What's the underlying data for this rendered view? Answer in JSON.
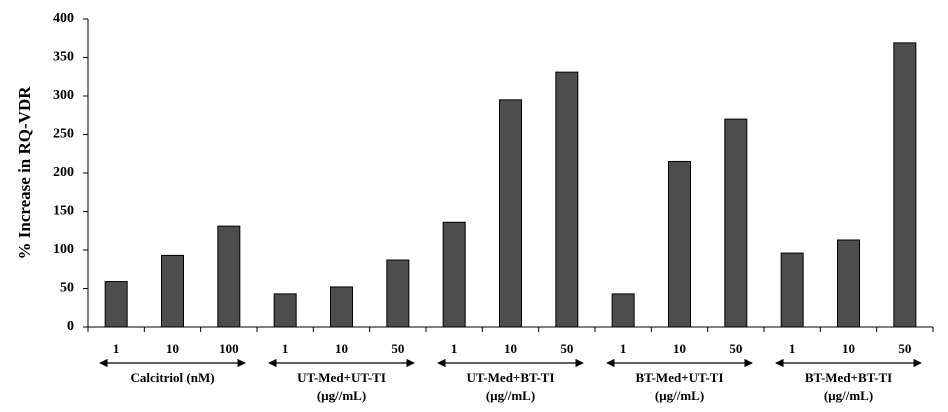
{
  "chart_data": {
    "type": "bar",
    "y_label": "% Increase in RQ-VDR",
    "categories": [
      "1",
      "10",
      "100",
      "1",
      "10",
      "50",
      "1",
      "10",
      "50",
      "1",
      "10",
      "50",
      "1",
      "10",
      "50"
    ],
    "values": [
      59,
      93,
      131,
      43,
      52,
      87,
      136,
      295,
      331,
      43,
      215,
      270,
      96,
      113,
      369
    ],
    "color": "#4d4d4d",
    "groups": [
      {
        "name": "Calcitriol (nM)"
      },
      {
        "name": "UT-Med+UT-TI",
        "unit": "(µg//mL)"
      },
      {
        "name": "UT-Med+BT-TI",
        "unit": "(µg//mL)"
      },
      {
        "name": "BT-Med+UT-TI",
        "unit": "(µg//mL)"
      },
      {
        "name": "BT-Med+BT-TI",
        "unit": "(µg//mL)"
      }
    ],
    "ylim": [
      0,
      400
    ],
    "yticks": [
      0,
      50,
      100,
      150,
      200,
      250,
      300,
      350,
      400
    ]
  }
}
